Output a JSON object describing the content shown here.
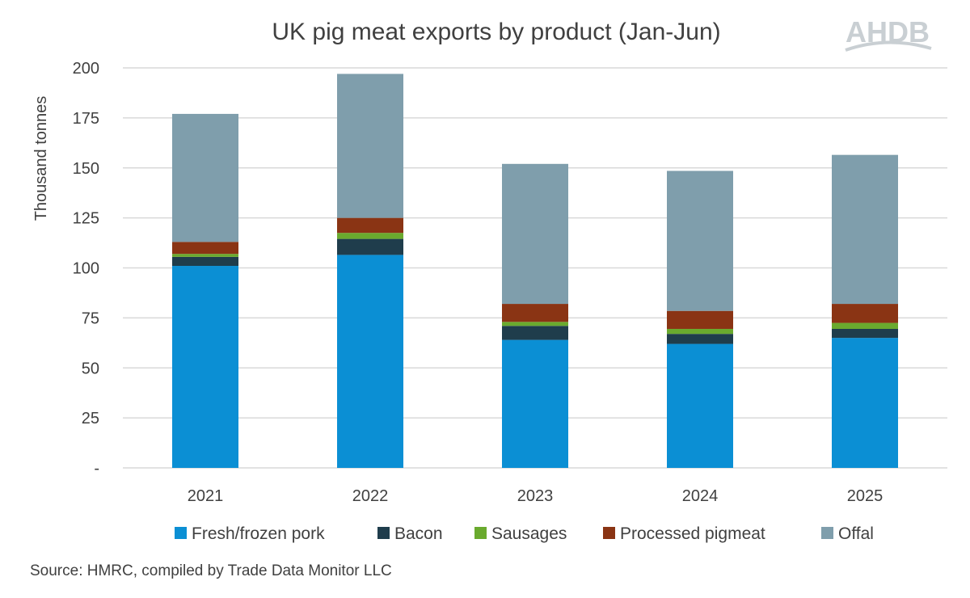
{
  "chart_data": {
    "type": "bar",
    "stacked": true,
    "title": "UK pig meat exports by product (Jan-Jun)",
    "ylabel": "Thousand tonnes",
    "xlabel": "",
    "ylim": [
      0,
      200
    ],
    "yticks": [
      "-",
      "25",
      "50",
      "75",
      "100",
      "125",
      "150",
      "175",
      "200"
    ],
    "ytick_values": [
      0,
      25,
      50,
      75,
      100,
      125,
      150,
      175,
      200
    ],
    "grid": true,
    "legend_position": "bottom",
    "categories": [
      "2021",
      "2022",
      "2023",
      "2024",
      "2025"
    ],
    "series": [
      {
        "name": "Fresh/frozen pork",
        "color": "#0b8fd4",
        "values": [
          101,
          106.5,
          64,
          62,
          65
        ]
      },
      {
        "name": "Bacon",
        "color": "#1f3d4c",
        "values": [
          4.5,
          8,
          7,
          5,
          4.5
        ]
      },
      {
        "name": "Sausages",
        "color": "#6aaa2e",
        "values": [
          1.5,
          3,
          2,
          2.5,
          3
        ]
      },
      {
        "name": "Processed pigmeat",
        "color": "#8a3414",
        "values": [
          6,
          7.5,
          9,
          9,
          9.5
        ]
      },
      {
        "name": "Offal",
        "color": "#7f9eac",
        "values": [
          64,
          72,
          70,
          70,
          74.5
        ]
      }
    ]
  },
  "logo": {
    "text": "AHDB"
  },
  "source": "Source: HMRC, compiled by Trade Data Monitor LLC",
  "colors": {
    "grid": "#d9d9d9",
    "text": "#404040",
    "logo": "#c9cfd3"
  }
}
